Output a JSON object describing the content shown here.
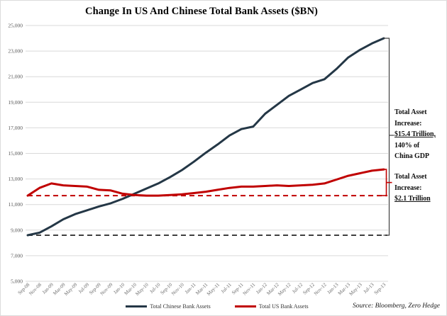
{
  "page_title": "Change In US And Chinese Total Bank Assets ($BN)",
  "chart_data": {
    "type": "line",
    "title": "Change In US And Chinese Total Bank Assets ($BN)",
    "categories": [
      "Sep-08",
      "Nov-08",
      "Jan-09",
      "Mar-09",
      "May-09",
      "Jul-09",
      "Sep-09",
      "Nov-09",
      "Jan-10",
      "Mar-10",
      "May-10",
      "Jul-10",
      "Sep-10",
      "Nov-10",
      "Jan-11",
      "Mar-11",
      "May-11",
      "Jul-11",
      "Sep-11",
      "Nov-11",
      "Jan-12",
      "Mar-12",
      "May-12",
      "Jul-12",
      "Sep-12",
      "Nov-12",
      "Jan-13",
      "Mar-13",
      "May-13",
      "Jul-13",
      "Sep-13"
    ],
    "series": [
      {
        "name": "Total Chinese Bank Assets",
        "color": "#243746",
        "dash_color": "#3f3f3f",
        "baseline_dashed": 8600,
        "values": [
          8600,
          8800,
          9300,
          9850,
          10250,
          10550,
          10850,
          11100,
          11450,
          11850,
          12250,
          12650,
          13150,
          13700,
          14350,
          15050,
          15700,
          16400,
          16900,
          17100,
          18100,
          18800,
          19500,
          20000,
          20500,
          20800,
          21600,
          22500,
          23100,
          23600,
          24000
        ]
      },
      {
        "name": "Total US Bank Assets",
        "color": "#c00000",
        "dash_color": "#c00000",
        "baseline_dashed": 11700,
        "values": [
          11700,
          12300,
          12650,
          12500,
          12450,
          12400,
          12150,
          12100,
          11850,
          11750,
          11700,
          11700,
          11750,
          11800,
          11900,
          12000,
          12150,
          12300,
          12400,
          12400,
          12450,
          12500,
          12450,
          12500,
          12550,
          12650,
          12950,
          13250,
          13450,
          13650,
          13750
        ]
      }
    ],
    "ylim": [
      5000,
      25000
    ],
    "ytick_step": 2000,
    "grid": true,
    "legend_position": "bottom",
    "xlabel": "",
    "ylabel": ""
  },
  "annotations": {
    "china": {
      "line1": "Total Asset",
      "line2": "Increase:",
      "line3": "$15.4 Trillion,",
      "line4": "140% of",
      "line5": "China GDP"
    },
    "us": {
      "line1": "Total Asset",
      "line2": "Increase:",
      "line3": "$2.1 Trillion"
    }
  },
  "legend": {
    "chinese_label": "Total Chinese Bank Assets",
    "us_label": "Total US Bank Assets"
  },
  "source": "Source: Bloomberg, Zero Hedge",
  "colors": {
    "chinese_line": "#243746",
    "us_line": "#c00000",
    "gridline": "#d9d9d9",
    "axis_text": "#6b6b6b",
    "annotation_text": "#111111"
  }
}
